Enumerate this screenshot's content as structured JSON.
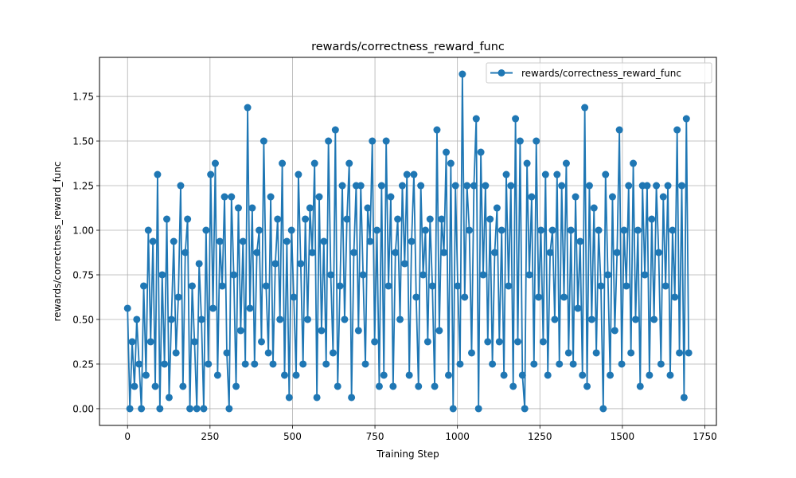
{
  "chart_data": {
    "type": "line",
    "title": "rewards/correctness_reward_func",
    "xlabel": "Training Step",
    "ylabel": "rewards/correctness_reward_func",
    "xlim": [
      -85,
      1785
    ],
    "ylim": [
      -0.094,
      1.969
    ],
    "x_ticks": [
      0,
      250,
      500,
      750,
      1000,
      1250,
      1500,
      1750
    ],
    "x_tick_labels": [
      "0",
      "250",
      "500",
      "750",
      "1000",
      "1250",
      "1500",
      "1750"
    ],
    "y_ticks": [
      0,
      0.25,
      0.5,
      0.75,
      1.0,
      1.25,
      1.5,
      1.75
    ],
    "y_tick_labels": [
      "0.00",
      "0.25",
      "0.50",
      "0.75",
      "1.00",
      "1.25",
      "1.50",
      "1.75"
    ],
    "grid": true,
    "legend": {
      "placement": "top-right",
      "entries": [
        "rewards/correctness_reward_func"
      ]
    },
    "series": [
      {
        "name": "rewards/correctness_reward_func",
        "color": "#1f77b4",
        "marker": "circle",
        "x_start": 0,
        "x_step": 7,
        "values": [
          0.5625,
          0,
          0.375,
          0.125,
          0.5,
          0.25,
          0,
          0.6875,
          0.1875,
          1.0,
          0.375,
          0.9375,
          0.125,
          1.3125,
          0,
          0.75,
          0.25,
          1.0625,
          0.0625,
          0.5,
          0.9375,
          0.3125,
          0.625,
          1.25,
          0.125,
          0.875,
          1.0625,
          0,
          0.6875,
          0.375,
          0,
          0.8125,
          0.5,
          0,
          1.0,
          0.25,
          1.3125,
          0.5625,
          1.375,
          0.1875,
          0.9375,
          0.6875,
          1.1875,
          0.3125,
          0,
          1.1875,
          0.75,
          0.125,
          1.125,
          0.4375,
          0.9375,
          0.25,
          1.6875,
          0.5625,
          1.125,
          0.25,
          0.875,
          1.0,
          0.375,
          1.5,
          0.6875,
          0.3125,
          1.1875,
          0.25,
          0.8125,
          1.0625,
          0.5,
          1.375,
          0.1875,
          0.9375,
          0.0625,
          1.0,
          0.625,
          0.1875,
          1.3125,
          0.8125,
          0.25,
          1.0625,
          0.5,
          1.125,
          0.875,
          1.375,
          0.0625,
          1.1875,
          0.4375,
          0.9375,
          0.25,
          1.5,
          0.75,
          0.3125,
          1.5625,
          0.125,
          0.6875,
          1.25,
          0.5,
          1.0625,
          1.375,
          0.0625,
          0.875,
          1.25,
          0.4375,
          1.25,
          0.75,
          0.25,
          1.125,
          0.9375,
          1.5,
          0.375,
          1.0,
          0.125,
          1.25,
          0.1875,
          1.5,
          0.6875,
          1.1875,
          0.125,
          0.875,
          1.0625,
          0.5,
          1.25,
          0.8125,
          1.3125,
          0.1875,
          0.9375,
          1.3125,
          0.625,
          0.125,
          1.25,
          0.75,
          1.0,
          0.375,
          1.0625,
          0.6875,
          0.125,
          1.5625,
          0.4375,
          1.0625,
          0.875,
          1.4375,
          0.1875,
          1.375,
          0,
          1.25,
          0.6875,
          0.25,
          1.875,
          0.625,
          1.25,
          1.0,
          0.3125,
          1.25,
          1.625,
          0,
          1.4375,
          0.75,
          1.25,
          0.375,
          1.0625,
          0.25,
          0.875,
          1.125,
          0.375,
          1.0,
          0.1875,
          1.3125,
          0.6875,
          1.25,
          0.125,
          1.625,
          0.375,
          1.5,
          0.1875,
          0,
          1.375,
          0.75,
          1.1875,
          0.25,
          1.5,
          0.625,
          1.0,
          0.375,
          1.3125,
          0.1875,
          0.875,
          1.0,
          0.5,
          1.3125,
          0.25,
          1.25,
          0.625,
          1.375,
          0.3125,
          1.0,
          0.25,
          1.1875,
          0.5625,
          0.9375,
          0.1875,
          1.6875,
          0.125,
          1.25,
          0.5,
          1.125,
          0.3125,
          1.0,
          0.6875,
          0,
          1.3125,
          0.75,
          0.1875,
          1.1875,
          0.4375,
          0.875,
          1.5625,
          0.25,
          1.0,
          0.6875,
          1.25,
          0.3125,
          1.375,
          0.5,
          1.0,
          0.125,
          1.25,
          0.75,
          1.25,
          0.1875,
          1.0625,
          0.5,
          1.25,
          0.875,
          0.25,
          1.1875,
          0.6875,
          1.25,
          0.1875,
          1.0,
          0.625,
          1.5625,
          0.3125,
          1.25,
          0.0625,
          1.625,
          0.3125
        ]
      }
    ]
  }
}
